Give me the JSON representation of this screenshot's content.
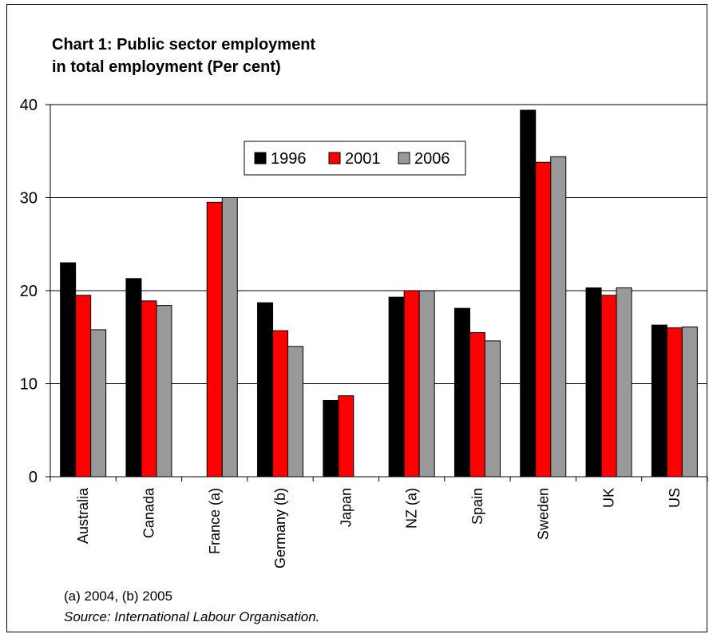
{
  "chart_data": {
    "type": "bar",
    "title_lines": [
      "Chart 1: Public sector employment",
      "in total employment (Per cent)"
    ],
    "categories": [
      "Australia",
      "Canada",
      "France (a)",
      "Germany (b)",
      "Japan",
      "NZ (a)",
      "Spain",
      "Sweden",
      "UK",
      "US"
    ],
    "series": [
      {
        "name": "1996",
        "color": "#000000",
        "values": [
          23.0,
          21.3,
          null,
          18.7,
          8.2,
          19.3,
          18.1,
          39.4,
          20.3,
          16.3
        ]
      },
      {
        "name": "2001",
        "color": "#ff0000",
        "values": [
          19.5,
          18.9,
          29.5,
          15.7,
          8.7,
          20.0,
          15.5,
          33.8,
          19.5,
          16.0
        ]
      },
      {
        "name": "2006",
        "color": "#999999",
        "values": [
          15.8,
          18.4,
          30.0,
          14.0,
          null,
          20.0,
          14.6,
          34.4,
          20.3,
          16.1
        ]
      }
    ],
    "yticks": [
      "0",
      "10",
      "20",
      "30",
      "40"
    ],
    "ylim": [
      0,
      40
    ],
    "grid": true,
    "legend_position": "top-center"
  },
  "notes": {
    "footnote": "(a) 2004, (b) 2005",
    "source": "Source: International Labour Organisation."
  }
}
